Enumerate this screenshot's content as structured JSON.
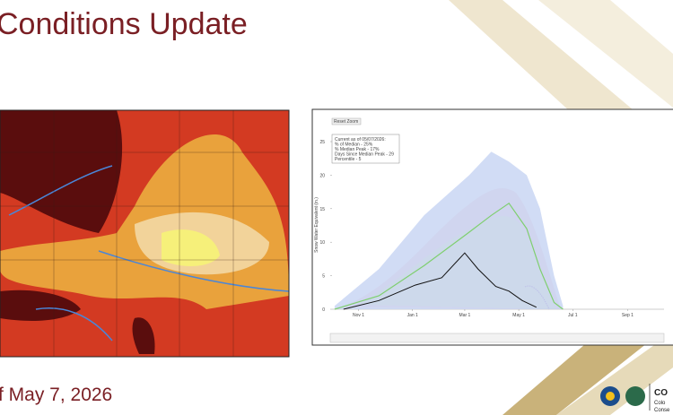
{
  "slide": {
    "title": "Conditions Update",
    "date": "f May 7, 2026"
  },
  "chart": {
    "type": "line",
    "reset_button": "Reset Zoom",
    "info": [
      "Current as of 05/07/2026:",
      "% of Median - 25%",
      "% Median Peak - 17%",
      "Days Since Median Peak - 29",
      "Percentile - 5"
    ],
    "y_label": "Snow Water Equivalent (in.)",
    "xlim": [
      0,
      365
    ],
    "ylim": [
      0,
      25
    ],
    "yticks": [
      0,
      5,
      10,
      15,
      20,
      25
    ],
    "xticks": [
      {
        "value": 31,
        "label": "Nov 1"
      },
      {
        "value": 92,
        "label": "Jan 1"
      },
      {
        "value": 151,
        "label": "Mar 1"
      },
      {
        "value": 212,
        "label": "May 1"
      },
      {
        "value": 273,
        "label": "Jul 1"
      },
      {
        "value": 335,
        "label": "Sep 1"
      }
    ],
    "series": [
      {
        "color": "#c5d3f3",
        "x": [
          4,
          54,
          105,
          156,
          181,
          201,
          221,
          236,
          252,
          262
        ],
        "values": [
          0.5,
          6,
          14,
          20,
          23.5,
          22,
          20,
          15,
          5,
          0.5
        ]
      },
      {
        "color": "#7fcf6f",
        "x": [
          4,
          54,
          105,
          156,
          181,
          201,
          221,
          236,
          252,
          262
        ],
        "values": [
          0,
          2,
          6.5,
          11.5,
          14,
          15.8,
          12,
          6,
          1,
          0
        ]
      },
      {
        "color": "#111111",
        "x": [
          14,
          54,
          95,
          125,
          151,
          166,
          186,
          201,
          216,
          232
        ],
        "values": [
          0,
          1.3,
          3.6,
          4.7,
          8.4,
          6,
          3.4,
          2.7,
          1.3,
          0.3
        ]
      }
    ]
  },
  "logo": {
    "lines": [
      "CO",
      "Colo",
      "Conse"
    ]
  }
}
